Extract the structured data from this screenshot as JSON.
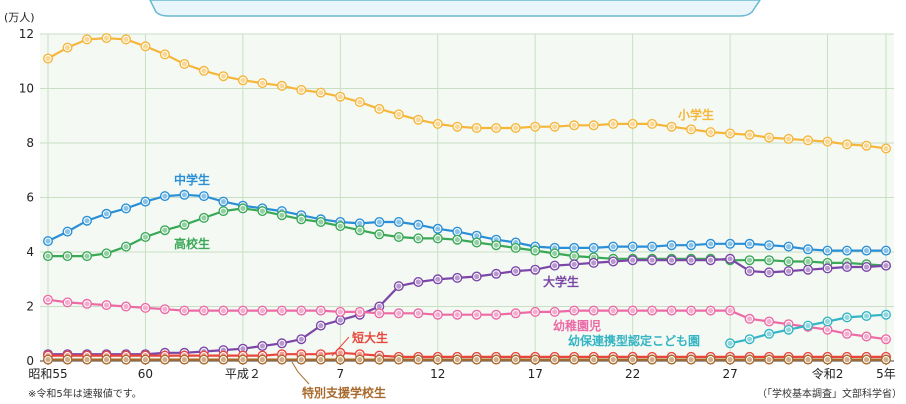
{
  "chart_data": {
    "type": "line",
    "title": "",
    "unit_label": "(万人)",
    "ylabel": "",
    "xlabel": "",
    "ylim": [
      0,
      12
    ],
    "yticks": [
      "0",
      "2",
      "4",
      "6",
      "8",
      "10",
      "12"
    ],
    "grid": true,
    "legend": "inline",
    "x_years": [
      1980,
      1981,
      1982,
      1983,
      1984,
      1985,
      1986,
      1987,
      1988,
      1989,
      1990,
      1991,
      1992,
      1993,
      1994,
      1995,
      1996,
      1997,
      1998,
      1999,
      2000,
      2001,
      2002,
      2003,
      2004,
      2005,
      2006,
      2007,
      2008,
      2009,
      2010,
      2011,
      2012,
      2013,
      2014,
      2015,
      2016,
      2017,
      2018,
      2019,
      2020,
      2021,
      2022,
      2023
    ],
    "xticks": [
      {
        "year": 1980,
        "label": "昭和55"
      },
      {
        "year": 1985,
        "label": "60"
      },
      {
        "year": 1990,
        "label": "平成２"
      },
      {
        "year": 1995,
        "label": "7"
      },
      {
        "year": 2000,
        "label": "12"
      },
      {
        "year": 2005,
        "label": "17"
      },
      {
        "year": 2010,
        "label": "22"
      },
      {
        "year": 2015,
        "label": "27"
      },
      {
        "year": 2020,
        "label": "令和2"
      },
      {
        "year": 2023,
        "label": "5年"
      }
    ],
    "series": [
      {
        "name": "小学生",
        "color": "#f5b63c",
        "start_year": 1980,
        "values": [
          11.1,
          11.5,
          11.8,
          11.85,
          11.8,
          11.55,
          11.25,
          10.9,
          10.65,
          10.45,
          10.3,
          10.2,
          10.1,
          9.95,
          9.85,
          9.7,
          9.5,
          9.25,
          9.05,
          8.85,
          8.7,
          8.6,
          8.55,
          8.55,
          8.55,
          8.6,
          8.6,
          8.65,
          8.65,
          8.7,
          8.7,
          8.7,
          8.6,
          8.5,
          8.4,
          8.35,
          8.3,
          8.2,
          8.15,
          8.1,
          8.05,
          7.95,
          7.9,
          7.8
        ]
      },
      {
        "name": "中学生",
        "color": "#2a8fd6",
        "start_year": 1980,
        "values": [
          4.4,
          4.75,
          5.15,
          5.4,
          5.6,
          5.85,
          6.05,
          6.1,
          6.05,
          5.85,
          5.7,
          5.6,
          5.5,
          5.35,
          5.2,
          5.1,
          5.05,
          5.1,
          5.1,
          5.0,
          4.85,
          4.75,
          4.6,
          4.45,
          4.35,
          4.2,
          4.15,
          4.15,
          4.15,
          4.2,
          4.2,
          4.2,
          4.25,
          4.25,
          4.3,
          4.3,
          4.3,
          4.25,
          4.2,
          4.1,
          4.05,
          4.05,
          4.05,
          4.05
        ]
      },
      {
        "name": "高校生",
        "color": "#3aa857",
        "start_year": 1980,
        "values": [
          3.85,
          3.85,
          3.85,
          3.95,
          4.2,
          4.55,
          4.8,
          5.0,
          5.25,
          5.5,
          5.6,
          5.5,
          5.35,
          5.2,
          5.1,
          4.95,
          4.8,
          4.65,
          4.55,
          4.5,
          4.5,
          4.45,
          4.35,
          4.25,
          4.15,
          4.05,
          3.95,
          3.85,
          3.8,
          3.75,
          3.75,
          3.75,
          3.75,
          3.75,
          3.75,
          3.7,
          3.7,
          3.7,
          3.65,
          3.65,
          3.6,
          3.6,
          3.55,
          3.5
        ]
      },
      {
        "name": "大学生",
        "color": "#7b46a8",
        "start_year": 1980,
        "values": [
          0.25,
          0.25,
          0.25,
          0.25,
          0.25,
          0.25,
          0.3,
          0.3,
          0.35,
          0.4,
          0.45,
          0.55,
          0.65,
          0.8,
          1.3,
          1.5,
          1.7,
          2.0,
          2.75,
          2.9,
          3.0,
          3.05,
          3.1,
          3.2,
          3.3,
          3.35,
          3.5,
          3.55,
          3.6,
          3.65,
          3.7,
          3.7,
          3.7,
          3.7,
          3.7,
          3.75,
          3.3,
          3.25,
          3.3,
          3.35,
          3.4,
          3.45,
          3.45,
          3.5
        ]
      },
      {
        "name": "幼稚園児",
        "color": "#ec6aa6",
        "start_year": 1980,
        "values": [
          2.25,
          2.15,
          2.1,
          2.05,
          2.0,
          1.95,
          1.9,
          1.85,
          1.85,
          1.85,
          1.85,
          1.85,
          1.85,
          1.85,
          1.85,
          1.8,
          1.8,
          1.75,
          1.75,
          1.75,
          1.7,
          1.7,
          1.7,
          1.7,
          1.75,
          1.8,
          1.8,
          1.85,
          1.85,
          1.85,
          1.85,
          1.85,
          1.85,
          1.85,
          1.85,
          1.85,
          1.55,
          1.45,
          1.35,
          1.25,
          1.15,
          1.0,
          0.9,
          0.8
        ]
      },
      {
        "name": "幼保連携型認定こども園",
        "color": "#35b4c4",
        "start_year": 2015,
        "values": [
          0.65,
          0.8,
          1.0,
          1.15,
          1.3,
          1.45,
          1.6,
          1.65,
          1.7
        ]
      },
      {
        "name": "短大生",
        "color": "#e8463c",
        "start_year": 1980,
        "values": [
          0.2,
          0.2,
          0.2,
          0.2,
          0.2,
          0.2,
          0.2,
          0.2,
          0.2,
          0.2,
          0.2,
          0.2,
          0.25,
          0.25,
          0.25,
          0.3,
          0.25,
          0.2,
          0.15,
          0.15,
          0.15,
          0.15,
          0.15,
          0.15,
          0.15,
          0.15,
          0.15,
          0.15,
          0.15,
          0.15,
          0.15,
          0.15,
          0.15,
          0.15,
          0.15,
          0.15,
          0.15,
          0.15,
          0.15,
          0.15,
          0.15,
          0.15,
          0.15,
          0.15
        ]
      },
      {
        "name": "特別支援学校生",
        "color": "#a86a2c",
        "start_year": 1980,
        "values": [
          0.05,
          0.05,
          0.05,
          0.05,
          0.05,
          0.05,
          0.05,
          0.05,
          0.05,
          0.05,
          0.05,
          0.05,
          0.05,
          0.05,
          0.05,
          0.05,
          0.05,
          0.05,
          0.05,
          0.05,
          0.05,
          0.05,
          0.05,
          0.05,
          0.05,
          0.05,
          0.05,
          0.05,
          0.05,
          0.05,
          0.05,
          0.05,
          0.05,
          0.05,
          0.05,
          0.05,
          0.05,
          0.05,
          0.05,
          0.05,
          0.05,
          0.05,
          0.05,
          0.05
        ]
      }
    ],
    "notes": {
      "left": "※令和5年は速報値です。",
      "right": "（「学校基本調査」文部科学省）"
    }
  }
}
